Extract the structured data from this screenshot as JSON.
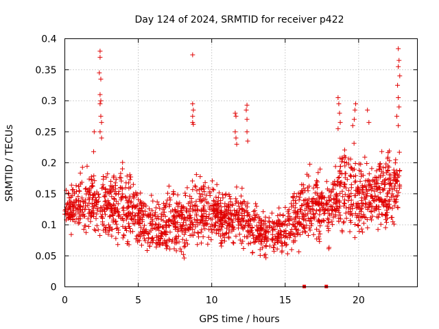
{
  "chart_data": {
    "type": "scatter",
    "title": "Day 124 of 2024, SRMTID for receiver p422",
    "xlabel": "GPS time / hours",
    "ylabel": "SRMTID / TECUs",
    "xlim": [
      0,
      24
    ],
    "ylim": [
      0,
      0.4
    ],
    "x_ticks": [
      0,
      5,
      10,
      15,
      20
    ],
    "x_tick_labels": [
      "0",
      "5",
      "10",
      "15",
      "20"
    ],
    "y_ticks": [
      0,
      0.05,
      0.1,
      0.15,
      0.2,
      0.25,
      0.3,
      0.35,
      0.4
    ],
    "y_tick_labels": [
      "0",
      "0.05",
      "0.1",
      "0.15",
      "0.2",
      "0.25",
      "0.3",
      "0.35",
      "0.4"
    ],
    "grid": true,
    "marker": "plus",
    "color": "#e00000",
    "series": [
      {
        "name": "SRMTID",
        "spikes": [
          {
            "x": 2.4,
            "y": 0.38
          },
          {
            "x": 2.4,
            "y": 0.37
          },
          {
            "x": 2.35,
            "y": 0.345
          },
          {
            "x": 2.45,
            "y": 0.335
          },
          {
            "x": 2.4,
            "y": 0.31
          },
          {
            "x": 2.45,
            "y": 0.3
          },
          {
            "x": 2.4,
            "y": 0.295
          },
          {
            "x": 2.45,
            "y": 0.275
          },
          {
            "x": 2.5,
            "y": 0.265
          },
          {
            "x": 2.4,
            "y": 0.25
          },
          {
            "x": 2.5,
            "y": 0.24
          },
          {
            "x": 2.0,
            "y": 0.25
          },
          {
            "x": 8.7,
            "y": 0.374
          },
          {
            "x": 8.7,
            "y": 0.295
          },
          {
            "x": 8.75,
            "y": 0.285
          },
          {
            "x": 8.7,
            "y": 0.275
          },
          {
            "x": 8.7,
            "y": 0.265
          },
          {
            "x": 8.75,
            "y": 0.262
          },
          {
            "x": 11.6,
            "y": 0.28
          },
          {
            "x": 11.65,
            "y": 0.275
          },
          {
            "x": 11.6,
            "y": 0.25
          },
          {
            "x": 11.65,
            "y": 0.24
          },
          {
            "x": 11.7,
            "y": 0.23
          },
          {
            "x": 12.4,
            "y": 0.293
          },
          {
            "x": 12.35,
            "y": 0.285
          },
          {
            "x": 12.4,
            "y": 0.27
          },
          {
            "x": 12.4,
            "y": 0.25
          },
          {
            "x": 12.45,
            "y": 0.235
          },
          {
            "x": 18.6,
            "y": 0.305
          },
          {
            "x": 18.65,
            "y": 0.295
          },
          {
            "x": 18.7,
            "y": 0.28
          },
          {
            "x": 18.75,
            "y": 0.265
          },
          {
            "x": 18.6,
            "y": 0.255
          },
          {
            "x": 19.8,
            "y": 0.295
          },
          {
            "x": 19.75,
            "y": 0.285
          },
          {
            "x": 19.7,
            "y": 0.27
          },
          {
            "x": 19.6,
            "y": 0.26
          },
          {
            "x": 20.6,
            "y": 0.285
          },
          {
            "x": 20.7,
            "y": 0.265
          },
          {
            "x": 22.7,
            "y": 0.384
          },
          {
            "x": 22.75,
            "y": 0.365
          },
          {
            "x": 22.7,
            "y": 0.355
          },
          {
            "x": 22.8,
            "y": 0.34
          },
          {
            "x": 22.65,
            "y": 0.325
          },
          {
            "x": 22.7,
            "y": 0.305
          },
          {
            "x": 22.75,
            "y": 0.29
          },
          {
            "x": 22.6,
            "y": 0.275
          },
          {
            "x": 22.7,
            "y": 0.26
          }
        ],
        "envelope": [
          {
            "x": 0.0,
            "low": 0.09,
            "high": 0.16
          },
          {
            "x": 1.0,
            "low": 0.06,
            "high": 0.2
          },
          {
            "x": 2.0,
            "low": 0.06,
            "high": 0.22
          },
          {
            "x": 3.0,
            "low": 0.05,
            "high": 0.2
          },
          {
            "x": 4.0,
            "low": 0.05,
            "high": 0.22
          },
          {
            "x": 5.0,
            "low": 0.05,
            "high": 0.17
          },
          {
            "x": 6.0,
            "low": 0.04,
            "high": 0.16
          },
          {
            "x": 7.0,
            "low": 0.03,
            "high": 0.17
          },
          {
            "x": 8.0,
            "low": 0.04,
            "high": 0.17
          },
          {
            "x": 9.0,
            "low": 0.05,
            "high": 0.2
          },
          {
            "x": 10.0,
            "low": 0.05,
            "high": 0.19
          },
          {
            "x": 11.0,
            "low": 0.05,
            "high": 0.17
          },
          {
            "x": 12.0,
            "low": 0.05,
            "high": 0.18
          },
          {
            "x": 13.0,
            "low": 0.04,
            "high": 0.14
          },
          {
            "x": 14.0,
            "low": 0.04,
            "high": 0.13
          },
          {
            "x": 15.0,
            "low": 0.04,
            "high": 0.14
          },
          {
            "x": 16.0,
            "low": 0.05,
            "high": 0.2
          },
          {
            "x": 17.0,
            "low": 0.05,
            "high": 0.21
          },
          {
            "x": 18.0,
            "low": 0.05,
            "high": 0.2
          },
          {
            "x": 19.0,
            "low": 0.07,
            "high": 0.26
          },
          {
            "x": 20.0,
            "low": 0.06,
            "high": 0.23
          },
          {
            "x": 21.0,
            "low": 0.07,
            "high": 0.22
          },
          {
            "x": 22.0,
            "low": 0.07,
            "high": 0.25
          },
          {
            "x": 22.8,
            "low": 0.1,
            "high": 0.23
          }
        ],
        "zero_markers": [
          {
            "x": 16.3,
            "y": 0
          },
          {
            "x": 17.8,
            "y": 0
          }
        ]
      }
    ]
  }
}
